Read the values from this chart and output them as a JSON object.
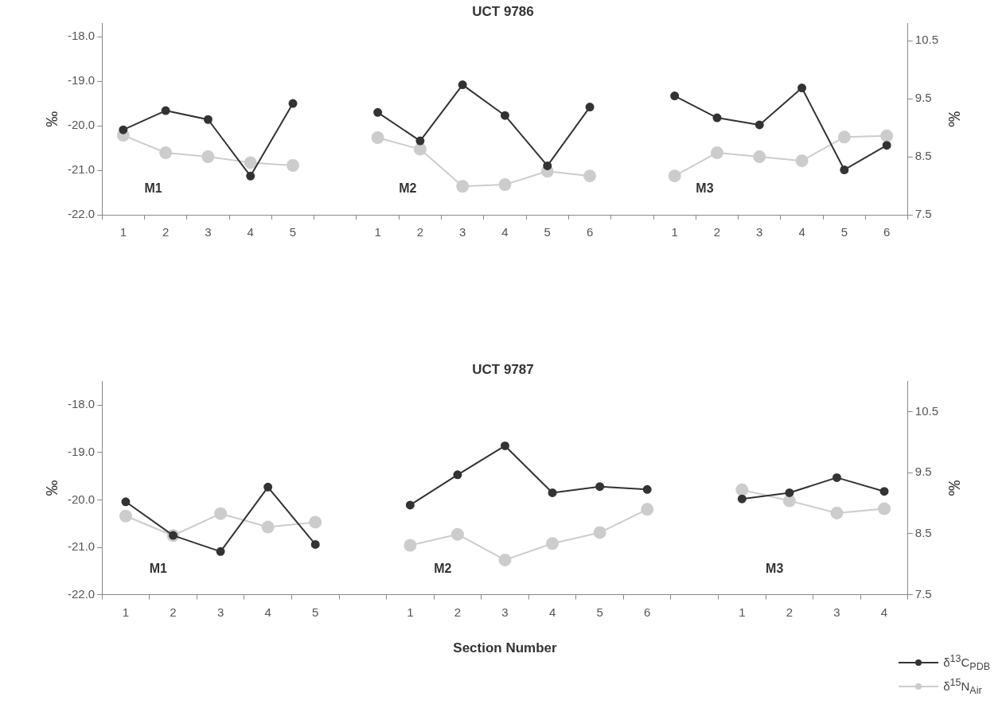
{
  "chart_data": [
    {
      "type": "line",
      "title": "UCT 9786",
      "ylabel": "‰",
      "y2label": "‰",
      "categories": [
        "1",
        "2",
        "3",
        "4",
        "5",
        null,
        "1",
        "2",
        "3",
        "4",
        "5",
        "6",
        null,
        "1",
        "2",
        "3",
        "4",
        "5",
        "6"
      ],
      "series": [
        {
          "color": "#333333",
          "values": [
            -20.09,
            -19.66,
            -19.86,
            -21.13,
            -19.5,
            null,
            -19.7,
            -20.34,
            -19.08,
            -19.77,
            -20.9,
            -19.58,
            null,
            -19.33,
            -19.82,
            -19.98,
            -19.15,
            -20.99,
            -20.44
          ]
        },
        {
          "color": "#cccccc",
          "axis": "y2",
          "values": [
            8.87,
            8.57,
            8.5,
            8.4,
            8.35,
            null,
            8.83,
            8.63,
            7.99,
            8.02,
            8.25,
            8.17,
            null,
            8.17,
            8.57,
            8.5,
            8.43,
            8.84,
            8.86
          ]
        }
      ],
      "ylim": [
        -22,
        -17.7
      ],
      "yticks": [
        {
          "value": -22,
          "label": "-22.0"
        },
        {
          "value": -21,
          "label": "-21.0"
        },
        {
          "value": -20,
          "label": "-20.0"
        },
        {
          "value": -19,
          "label": "-19.0"
        },
        {
          "value": -18,
          "label": "-18.0"
        }
      ],
      "y2lim": [
        7.5,
        10.8
      ],
      "y2ticks": [
        7.5,
        8.5,
        9.5,
        10.5
      ],
      "annotations": [
        "M1",
        "M2",
        "M3"
      ],
      "marker": "circle",
      "line_style": "solid"
    },
    {
      "type": "line",
      "title": "UCT 9787",
      "xlabel": "Section Number",
      "ylabel": "‰",
      "y2label": "‰",
      "categories": [
        "1",
        "2",
        "3",
        "4",
        "5",
        null,
        "1",
        "2",
        "3",
        "4",
        "5",
        "6",
        null,
        "1",
        "2",
        "3",
        "4"
      ],
      "series": [
        {
          "name": "δ$^{13}$C$_{PDB}$",
          "color": "#333333",
          "values": [
            -20.04,
            -20.75,
            -21.09,
            -19.73,
            -20.94,
            null,
            -20.11,
            -19.47,
            -18.86,
            -19.85,
            -19.72,
            -19.78,
            null,
            -19.98,
            -19.85,
            -19.53,
            -19.82
          ]
        },
        {
          "name": "δ$^{15}$N$_{Air}$",
          "color": "#cccccc",
          "axis": "y2",
          "values": [
            8.79,
            8.47,
            8.83,
            8.61,
            8.69,
            null,
            8.31,
            8.49,
            8.07,
            8.34,
            8.52,
            8.9,
            null,
            9.22,
            9.04,
            8.84,
            8.91
          ]
        }
      ],
      "ylim": [
        -22,
        -17.5
      ],
      "yticks": [
        {
          "value": -22,
          "label": "-22.0"
        },
        {
          "value": -21,
          "label": "-21.0"
        },
        {
          "value": -20,
          "label": "-20.0"
        },
        {
          "value": -19,
          "label": "-19.0"
        },
        {
          "value": -18,
          "label": "-18.0"
        }
      ],
      "y2lim": [
        7.5,
        11.0
      ],
      "y2ticks": [
        7.5,
        8.5,
        9.5,
        10.5
      ],
      "annotations": [
        "M1",
        "M2",
        "M3"
      ],
      "marker": "circle",
      "line_style": "solid",
      "legend": "bottom right"
    }
  ]
}
